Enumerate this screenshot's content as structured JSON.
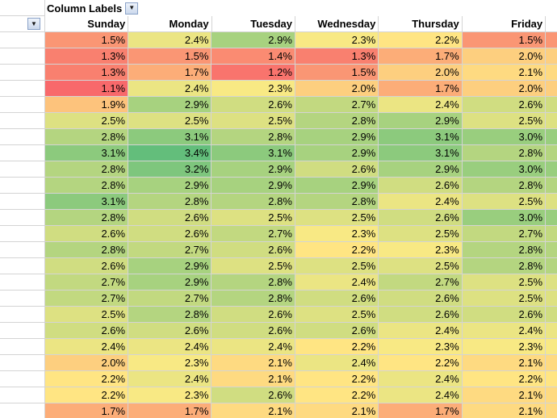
{
  "pivot": {
    "column_labels_caption": "Column Labels",
    "days": [
      "Sunday",
      "Monday",
      "Tuesday",
      "Wednesday",
      "Thursday",
      "Friday"
    ],
    "filter_icon": "dropdown-arrow-icon"
  },
  "heatmap_colors": {
    "low": "#f8696b",
    "mid": "#ffeb84",
    "high": "#63be7b"
  },
  "rows": [
    [
      "1.5%",
      "2.4%",
      "2.9%",
      "2.3%",
      "2.2%",
      "1.5%"
    ],
    [
      "1.3%",
      "1.5%",
      "1.4%",
      "1.3%",
      "1.7%",
      "2.0%"
    ],
    [
      "1.3%",
      "1.7%",
      "1.2%",
      "1.5%",
      "2.0%",
      "2.1%"
    ],
    [
      "1.1%",
      "2.4%",
      "2.3%",
      "2.0%",
      "1.7%",
      "2.0%"
    ],
    [
      "1.9%",
      "2.9%",
      "2.6%",
      "2.7%",
      "2.4%",
      "2.6%"
    ],
    [
      "2.5%",
      "2.5%",
      "2.5%",
      "2.8%",
      "2.9%",
      "2.5%"
    ],
    [
      "2.8%",
      "3.1%",
      "2.8%",
      "2.9%",
      "3.1%",
      "3.0%"
    ],
    [
      "3.1%",
      "3.4%",
      "3.1%",
      "2.9%",
      "3.1%",
      "2.8%"
    ],
    [
      "2.8%",
      "3.2%",
      "2.9%",
      "2.6%",
      "2.9%",
      "3.0%"
    ],
    [
      "2.8%",
      "2.9%",
      "2.9%",
      "2.9%",
      "2.6%",
      "2.8%"
    ],
    [
      "3.1%",
      "2.8%",
      "2.8%",
      "2.8%",
      "2.4%",
      "2.5%"
    ],
    [
      "2.8%",
      "2.6%",
      "2.5%",
      "2.5%",
      "2.6%",
      "3.0%"
    ],
    [
      "2.6%",
      "2.6%",
      "2.7%",
      "2.3%",
      "2.5%",
      "2.7%"
    ],
    [
      "2.8%",
      "2.7%",
      "2.6%",
      "2.2%",
      "2.3%",
      "2.8%"
    ],
    [
      "2.6%",
      "2.9%",
      "2.5%",
      "2.5%",
      "2.5%",
      "2.8%"
    ],
    [
      "2.7%",
      "2.9%",
      "2.8%",
      "2.4%",
      "2.7%",
      "2.5%"
    ],
    [
      "2.7%",
      "2.7%",
      "2.8%",
      "2.6%",
      "2.6%",
      "2.5%"
    ],
    [
      "2.5%",
      "2.8%",
      "2.6%",
      "2.5%",
      "2.6%",
      "2.6%"
    ],
    [
      "2.6%",
      "2.6%",
      "2.6%",
      "2.6%",
      "2.4%",
      "2.4%"
    ],
    [
      "2.4%",
      "2.4%",
      "2.4%",
      "2.2%",
      "2.3%",
      "2.3%"
    ],
    [
      "2.0%",
      "2.3%",
      "2.1%",
      "2.4%",
      "2.2%",
      "2.1%"
    ],
    [
      "2.2%",
      "2.4%",
      "2.1%",
      "2.2%",
      "2.4%",
      "2.2%"
    ],
    [
      "2.2%",
      "2.3%",
      "2.6%",
      "2.2%",
      "2.4%",
      "2.1%"
    ],
    [
      "1.7%",
      "1.7%",
      "2.1%",
      "2.1%",
      "1.7%",
      "2.1%"
    ]
  ]
}
